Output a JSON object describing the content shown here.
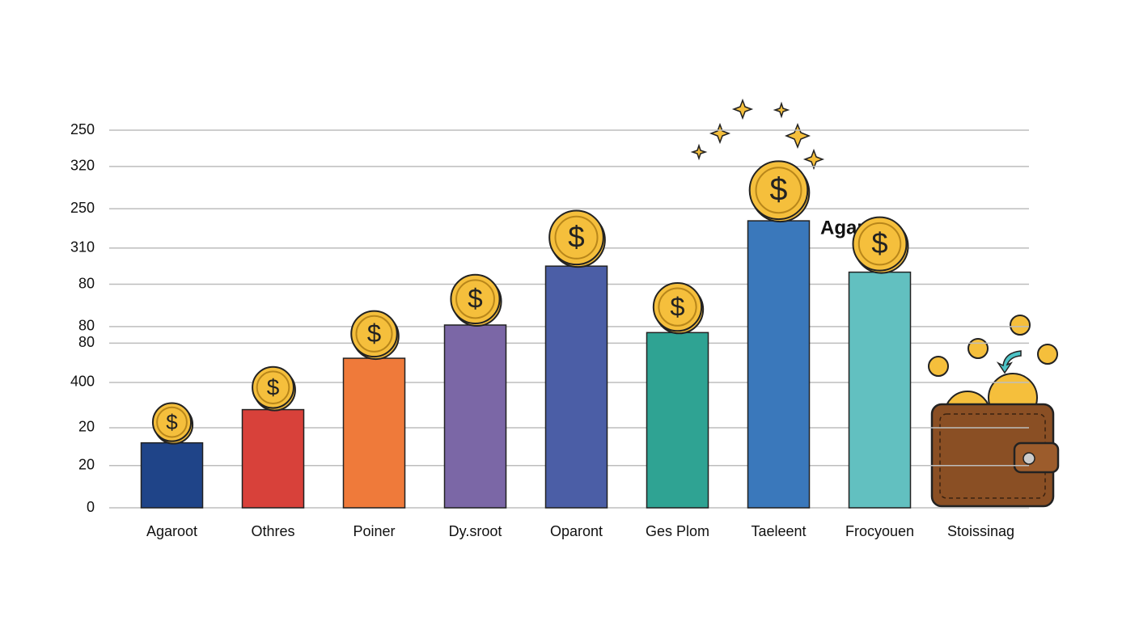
{
  "chart_data": {
    "type": "bar",
    "categories": [
      "Agaroot",
      "Othres",
      "Poiner",
      "Dy.sroot",
      "Oparont",
      "Ges Plom",
      "Taeleent",
      "Frocyouen",
      "Stoissinag"
    ],
    "values": [
      43,
      65,
      99,
      121,
      160,
      116,
      190,
      156,
      null
    ],
    "colors": [
      "#1f4488",
      "#d8413a",
      "#ef7a3a",
      "#7b67a6",
      "#4b5ea6",
      "#2fa393",
      "#3a78bb",
      "#62c0c0",
      null
    ],
    "annotation": "Agaroot",
    "ylim": [
      0,
      250
    ],
    "yticks": [
      250,
      {
        "value": 226,
        "label": "320"
      },
      {
        "value": 198,
        "label": "250"
      },
      {
        "value": 172,
        "label": "310"
      },
      {
        "value": 148,
        "label": "80"
      },
      {
        "value": 120,
        "label": "80"
      },
      {
        "value": 109,
        "label": "80"
      },
      {
        "value": 83,
        "label": "400"
      },
      {
        "value": 53,
        "label": "20"
      },
      {
        "value": 28,
        "label": "20"
      },
      0
    ],
    "grid": true
  }
}
